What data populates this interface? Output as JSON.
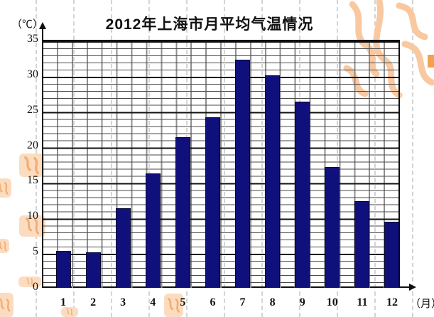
{
  "title": "2012年上海市月平均气温情况",
  "axes": {
    "y_unit_label": "（℃）",
    "x_unit_label": "（月）"
  },
  "chart_data": {
    "type": "bar",
    "title": "2012年上海市月平均气温情况",
    "categories": [
      "1",
      "2",
      "3",
      "4",
      "5",
      "6",
      "7",
      "8",
      "9",
      "10",
      "11",
      "12"
    ],
    "values": [
      5.2,
      5,
      11.2,
      16.1,
      21.3,
      24.1,
      32.2,
      30,
      26.3,
      17.1,
      12.2,
      9.3
    ],
    "xlabel": "月",
    "ylabel": "℃",
    "ylim": [
      0,
      35
    ],
    "y_ticks": [
      0,
      5,
      10,
      15,
      20,
      25,
      30,
      35
    ],
    "minor_grid_step_c": 1,
    "major_grid_step_c": 5,
    "grid": true,
    "legend_position": "none",
    "bar_color": "#10107C"
  },
  "decor": {
    "watermark_color": "#F8C9A1",
    "stamp_fill_color": "#FBDCC0",
    "stamp_stroke_color": "#F3AE72",
    "accent_block_color": "#F0A24E"
  }
}
